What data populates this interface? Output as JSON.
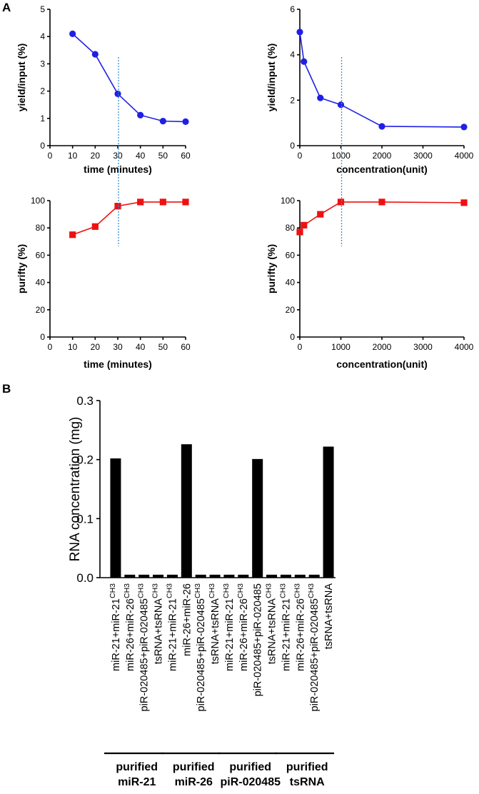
{
  "panels": {
    "a": "A",
    "b": "B"
  },
  "chart_data": [
    {
      "id": "yield-time",
      "type": "line",
      "xlabel": "time (minutes)",
      "ylabel": "yield/input (%)",
      "xlim": [
        0,
        60
      ],
      "ylim": [
        0,
        5
      ],
      "xticks": [
        0,
        10,
        20,
        30,
        40,
        50,
        60
      ],
      "yticks": [
        0,
        1,
        2,
        3,
        4,
        5
      ],
      "x": [
        10,
        20,
        30,
        40,
        50,
        60
      ],
      "series": [
        {
          "name": "yield",
          "values": [
            4.1,
            3.35,
            1.9,
            1.12,
            0.9,
            0.88
          ],
          "color": "#1f1fe6",
          "marker": "circle"
        }
      ],
      "vline": 30
    },
    {
      "id": "yield-concentration",
      "type": "line",
      "xlabel": "concentration(unit)",
      "ylabel": "yield/input (%)",
      "xlim": [
        0,
        4000
      ],
      "ylim": [
        0,
        6
      ],
      "xticks": [
        0,
        1000,
        2000,
        3000,
        4000
      ],
      "yticks": [
        0,
        2,
        4,
        6
      ],
      "x": [
        0,
        100,
        500,
        1000,
        2000,
        4000
      ],
      "series": [
        {
          "name": "yield",
          "values": [
            5.0,
            3.7,
            2.1,
            1.8,
            0.85,
            0.82
          ],
          "color": "#1f1fe6",
          "marker": "circle"
        }
      ],
      "vline": 1000
    },
    {
      "id": "purity-time",
      "type": "line",
      "xlabel": "time (minutes)",
      "ylabel": "purifty (%)",
      "xlim": [
        0,
        60
      ],
      "ylim": [
        0,
        100
      ],
      "xticks": [
        0,
        10,
        20,
        30,
        40,
        50,
        60
      ],
      "yticks": [
        0,
        20,
        40,
        60,
        80,
        100
      ],
      "x": [
        10,
        20,
        30,
        40,
        50,
        60
      ],
      "series": [
        {
          "name": "purity",
          "values": [
            75,
            81,
            96,
            99,
            99,
            99
          ],
          "color": "#ee1111",
          "marker": "square"
        }
      ],
      "vline": 30
    },
    {
      "id": "purity-concentration",
      "type": "line",
      "xlabel": "concentration(unit)",
      "ylabel": "purifty (%)",
      "xlim": [
        0,
        4000
      ],
      "ylim": [
        0,
        100
      ],
      "xticks": [
        0,
        1000,
        2000,
        3000,
        4000
      ],
      "yticks": [
        0,
        20,
        40,
        60,
        80,
        100
      ],
      "x": [
        0,
        100,
        500,
        1000,
        2000,
        4000
      ],
      "series": [
        {
          "name": "purity",
          "values": [
            77,
            82,
            90,
            99,
            99,
            98.5
          ],
          "color": "#ee1111",
          "marker": "square"
        }
      ],
      "vline": 1000
    },
    {
      "id": "rna-concentration",
      "type": "bar",
      "ylabel": "RNA concentration (mg)",
      "ylim": [
        0,
        0.3
      ],
      "yticks": [
        "0.0",
        "0.1",
        "0.2",
        "0.3"
      ],
      "superscript": "CH3",
      "categories": [
        {
          "label": "miR-21+miR-21",
          "sup": true
        },
        {
          "label": "miR-26+miR-26",
          "sup": true
        },
        {
          "label": "piR-020485+piR-020485",
          "sup": true
        },
        {
          "label": "tsRNA+tsRNA",
          "sup": true
        },
        {
          "label": "miR-21+miR-21",
          "sup": true
        },
        {
          "label": "miR-26+miR-26",
          "sup": false
        },
        {
          "label": "piR-020485+piR-020485",
          "sup": true
        },
        {
          "label": "tsRNA+tsRNA",
          "sup": true
        },
        {
          "label": "miR-21+miR-21",
          "sup": true
        },
        {
          "label": "miR-26+miR-26",
          "sup": true
        },
        {
          "label": "piR-020485+piR-020485",
          "sup": false
        },
        {
          "label": "tsRNA+tsRNA",
          "sup": true
        },
        {
          "label": "miR-21+miR-21",
          "sup": true
        },
        {
          "label": "miR-26+miR-26",
          "sup": true
        },
        {
          "label": "piR-020485+piR-020485",
          "sup": true
        },
        {
          "label": "tsRNA+tsRNA",
          "sup": false
        }
      ],
      "values": [
        0.202,
        0.005,
        0.005,
        0.005,
        0.005,
        0.226,
        0.005,
        0.005,
        0.005,
        0.005,
        0.201,
        0.005,
        0.005,
        0.005,
        0.005,
        0.222
      ],
      "groups": [
        {
          "line1": "purified",
          "line2": "miR-21"
        },
        {
          "line1": "purified",
          "line2": "miR-26"
        },
        {
          "line1": "purified",
          "line2": "piR-020485"
        },
        {
          "line1": "purified",
          "line2": "tsRNA"
        }
      ]
    }
  ]
}
